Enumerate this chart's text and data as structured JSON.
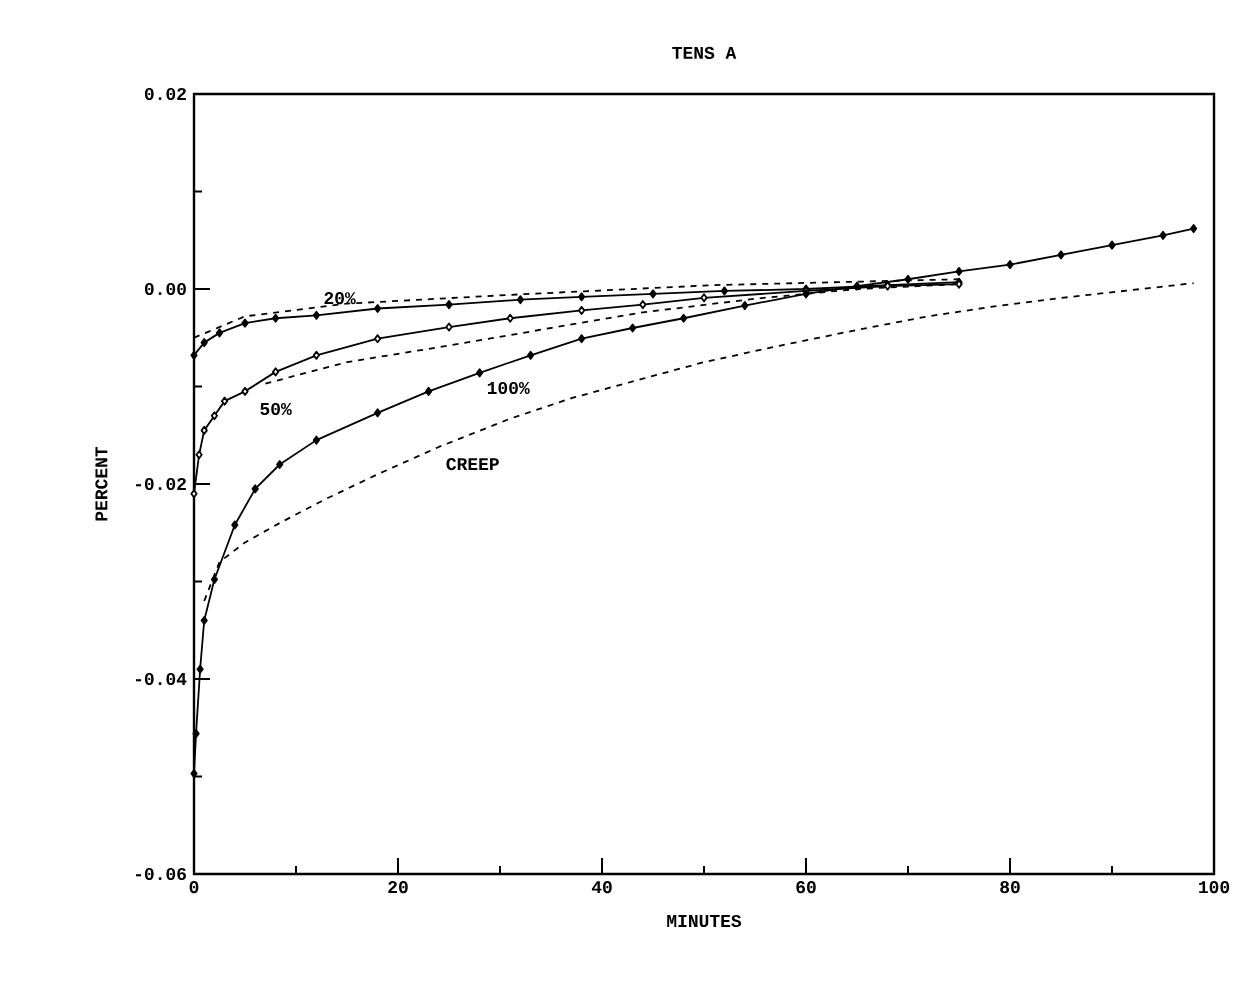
{
  "chart_data": {
    "type": "line",
    "title": "TENS A",
    "xlabel": "MINUTES",
    "ylabel": "PERCENT",
    "xlim": [
      0,
      100
    ],
    "xticks": [
      0,
      20,
      40,
      60,
      80,
      100
    ],
    "ylim": [
      -0.06,
      0.02
    ],
    "yticks": [
      {
        "value": -0.06,
        "label": "-0.06"
      },
      {
        "value": -0.04,
        "label": "-0.04"
      },
      {
        "value": -0.02,
        "label": "-0.02"
      },
      {
        "value": 0,
        "label": "0.00"
      },
      {
        "value": 0.02,
        "label": "0.02"
      }
    ],
    "grid": false,
    "legend": false,
    "marker": "diamond",
    "series": [
      {
        "name": "20%",
        "color": "#000000",
        "x": [
          0,
          1,
          2.5,
          5,
          8,
          12,
          18,
          25,
          32,
          38,
          45,
          52,
          60,
          68,
          75
        ],
        "values": [
          -0.0068,
          -0.0055,
          -0.0045,
          -0.0035,
          -0.003,
          -0.0027,
          -0.002,
          -0.0016,
          -0.0011,
          -0.0008,
          -0.0005,
          -0.0002,
          0,
          0.0004,
          0.0007
        ]
      },
      {
        "name": "50%",
        "color": "#000000",
        "x": [
          0,
          0.5,
          1,
          2,
          3,
          5,
          8,
          12,
          18,
          25,
          31,
          38,
          44,
          50,
          60,
          68,
          75
        ],
        "values": [
          -0.021,
          -0.017,
          -0.0145,
          -0.013,
          -0.0115,
          -0.0105,
          -0.0085,
          -0.0068,
          -0.0051,
          -0.0039,
          -0.003,
          -0.0022,
          -0.0016,
          -0.0009,
          -0.0002,
          0.0003,
          0.0005
        ]
      },
      {
        "name": "100%",
        "color": "#000000",
        "x": [
          0,
          0.2,
          0.6,
          1,
          2,
          4,
          6,
          8.4,
          12,
          18,
          23,
          28,
          33,
          38,
          43,
          48,
          54,
          60,
          65,
          70,
          75,
          80,
          85,
          90,
          95,
          98
        ],
        "values": [
          -0.0497,
          -0.0456,
          -0.039,
          -0.034,
          -0.0298,
          -0.0242,
          -0.0205,
          -0.018,
          -0.0155,
          -0.0127,
          -0.0105,
          -0.0086,
          -0.0068,
          -0.0051,
          -0.004,
          -0.003,
          -0.0017,
          -0.0005,
          0.0003,
          0.001,
          0.0018,
          0.0025,
          0.0035,
          0.0045,
          0.0055,
          0.0062
        ]
      },
      {
        "color": "#000000",
        "line_style": "dashed",
        "marker": "none",
        "x": [
          0,
          5,
          15,
          31,
          51,
          75
        ],
        "values": [
          -0.005,
          -0.0028,
          -0.0015,
          -0.0006,
          0.0004,
          0.001
        ]
      },
      {
        "color": "#000000",
        "line_style": "dashed",
        "marker": "none",
        "x": [
          7,
          15,
          25,
          35,
          44,
          55,
          65,
          75
        ],
        "values": [
          -0.0097,
          -0.0075,
          -0.0058,
          -0.004,
          -0.0024,
          -0.001,
          0,
          0.0005
        ]
      },
      {
        "name": "CREEP",
        "color": "#000000",
        "line_style": "dashed",
        "marker": "none",
        "x": [
          1,
          2.5,
          5,
          8.4,
          13,
          18,
          24,
          31,
          37,
          44,
          50,
          57.5,
          65,
          72,
          79,
          86,
          92,
          98
        ],
        "values": [
          -0.032,
          -0.028,
          -0.026,
          -0.024,
          -0.0215,
          -0.019,
          -0.0162,
          -0.0133,
          -0.0112,
          -0.0092,
          -0.0075,
          -0.0058,
          -0.0042,
          -0.0028,
          -0.0017,
          -0.0008,
          -0.0001,
          0.0006
        ]
      }
    ]
  }
}
